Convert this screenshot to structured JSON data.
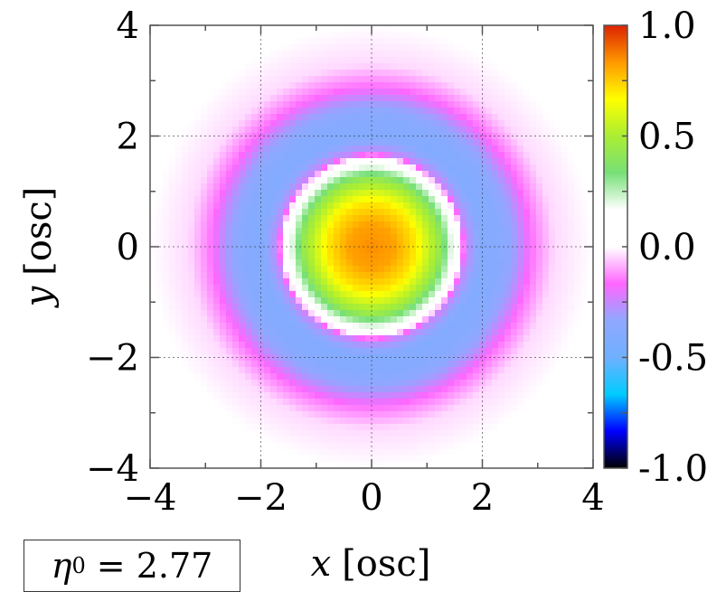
{
  "chart_data": {
    "type": "heatmap",
    "title": "",
    "xlabel": "x [osc]",
    "ylabel": "y [osc]",
    "xlabel_var": "x",
    "xlabel_unit": "[osc]",
    "ylabel_var": "y",
    "ylabel_unit": "[osc]",
    "xlim": [
      -4,
      4
    ],
    "ylim": [
      -4,
      4
    ],
    "x_ticks": [
      -4,
      -2,
      0,
      2,
      4
    ],
    "y_ticks": [
      -4,
      -2,
      0,
      2,
      4
    ],
    "x_tick_labels": [
      "−4",
      "−2",
      "0",
      "2",
      "4"
    ],
    "y_tick_labels": [
      "−4",
      "−2",
      "0",
      "2",
      "4"
    ],
    "grid": true,
    "colorbar": {
      "range": [
        -1.0,
        1.0
      ],
      "ticks": [
        1.0,
        0.5,
        0.0,
        -0.5,
        -1.0
      ],
      "tick_labels": [
        "1.0",
        "0.5",
        "0.0",
        "-0.5",
        "-1.0"
      ],
      "colors": [
        "#000000",
        "#0000ff",
        "#00ccff",
        "#6fb0ff",
        "#8fa8ff",
        "#ff66ff",
        "#ffffff",
        "#ffffff",
        "#77e077",
        "#aaee33",
        "#ffff00",
        "#ff9900",
        "#dd2200"
      ]
    },
    "field": {
      "description": "radially symmetric: max ~0.85 at center, zero crossing at r~1.6, min ~-0.4 near r~2.1, decays to 0 by r~3.5",
      "radius": [
        0.0,
        0.4,
        0.8,
        1.2,
        1.55,
        1.6,
        1.7,
        2.0,
        2.3,
        2.6,
        2.9,
        3.3,
        4.0
      ],
      "value": [
        0.85,
        0.82,
        0.7,
        0.45,
        0.08,
        0.0,
        -0.25,
        -0.4,
        -0.38,
        -0.3,
        -0.15,
        -0.04,
        0.0
      ]
    },
    "annotation": {
      "symbol": "η",
      "subscript": "0",
      "equals": " = ",
      "value": "2.77"
    }
  }
}
